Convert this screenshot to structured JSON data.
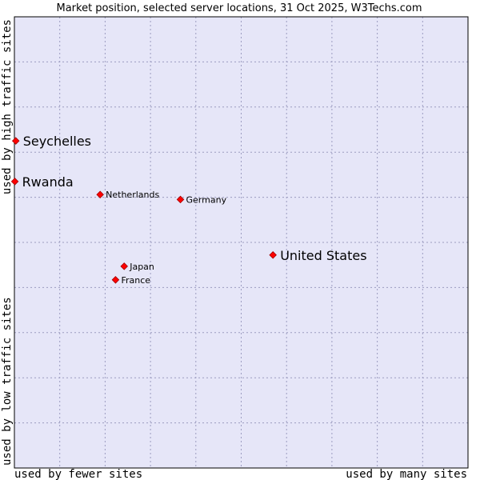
{
  "chart_data": {
    "type": "scatter",
    "title": "Market position, selected server locations, 31 Oct 2025, W3Techs.com",
    "xlabel_left": "used by fewer sites",
    "xlabel_right": "used by many sites",
    "ylabel_bottom": "used by low traffic sites",
    "ylabel_top": "used by high traffic sites",
    "grid": true,
    "xlim": [
      0,
      100
    ],
    "ylim": [
      0,
      100
    ],
    "colors": {
      "plot_background": "#e6e6f8",
      "grid": "#9c9cc0",
      "border": "#000000",
      "point": "#ff0000",
      "point_outline": "#a00000"
    },
    "points": [
      {
        "label": "Seychelles",
        "x": 0.3,
        "y": 72.5,
        "emphasis": true
      },
      {
        "label": "Rwanda",
        "x": 0.1,
        "y": 63.5,
        "emphasis": true
      },
      {
        "label": "Netherlands",
        "x": 18.9,
        "y": 60.6,
        "emphasis": false
      },
      {
        "label": "Germany",
        "x": 36.6,
        "y": 59.5,
        "emphasis": false
      },
      {
        "label": "United States",
        "x": 57.0,
        "y": 47.2,
        "emphasis": true
      },
      {
        "label": "Japan",
        "x": 24.2,
        "y": 44.7,
        "emphasis": false
      },
      {
        "label": "France",
        "x": 22.3,
        "y": 41.7,
        "emphasis": false
      }
    ]
  }
}
